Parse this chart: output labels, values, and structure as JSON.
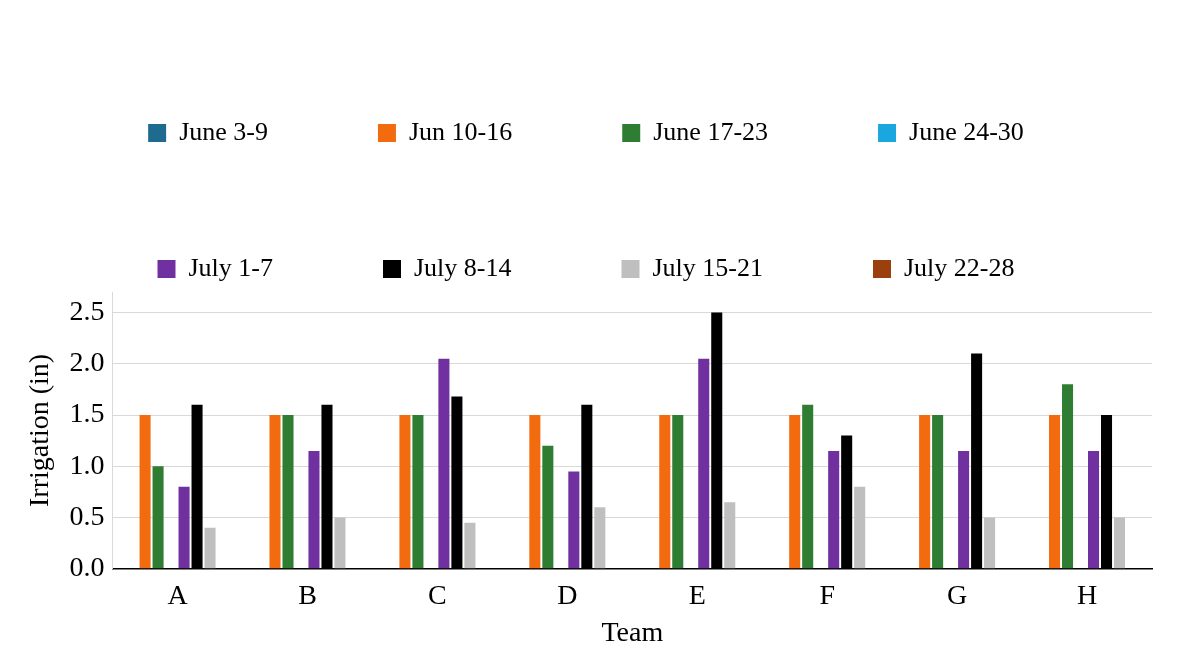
{
  "chart_data": {
    "type": "bar",
    "xlabel": "Team",
    "ylabel": "Irrigation (in)",
    "categories": [
      "A",
      "B",
      "C",
      "D",
      "E",
      "F",
      "G",
      "H"
    ],
    "series": [
      {
        "name": "June 3-9",
        "color": "#1f6b8f",
        "values": [
          0,
          0,
          0,
          0,
          0,
          0,
          0,
          0
        ]
      },
      {
        "name": "Jun 10-16",
        "color": "#f26b0f",
        "values": [
          1.5,
          1.5,
          1.5,
          1.5,
          1.5,
          1.5,
          1.5,
          1.5
        ]
      },
      {
        "name": "June 17-23",
        "color": "#2e7d32",
        "values": [
          1.0,
          1.5,
          1.5,
          1.2,
          1.5,
          1.6,
          1.5,
          1.8
        ]
      },
      {
        "name": "June 24-30",
        "color": "#1aa7e0",
        "values": [
          0,
          0,
          0,
          0,
          0,
          0,
          0,
          0
        ]
      },
      {
        "name": "July 1-7",
        "color": "#7030a0",
        "values": [
          0.8,
          1.15,
          2.05,
          0.95,
          2.05,
          1.15,
          1.15,
          1.15
        ]
      },
      {
        "name": "July 8-14",
        "color": "#000000",
        "values": [
          1.6,
          1.6,
          1.68,
          1.6,
          2.5,
          1.3,
          2.1,
          1.5
        ]
      },
      {
        "name": "July 15-21",
        "color": "#bfbfbf",
        "values": [
          0.4,
          0.5,
          0.45,
          0.6,
          0.65,
          0.8,
          0.5,
          0.5
        ]
      },
      {
        "name": "July 22-28",
        "color": "#9c3f0f",
        "values": [
          0,
          0,
          0,
          0,
          0,
          0,
          0,
          0
        ]
      }
    ],
    "ylim": [
      0,
      2.7
    ],
    "yticks": [
      {
        "value": 0,
        "label": "0.0"
      },
      {
        "value": 0.5,
        "label": "0.5"
      },
      {
        "value": 1,
        "label": "1.0"
      },
      {
        "value": 1.5,
        "label": "1.5"
      },
      {
        "value": 2,
        "label": "2.0"
      },
      {
        "value": 2.5,
        "label": "2.5"
      }
    ],
    "grid": "y",
    "legend": "top"
  }
}
